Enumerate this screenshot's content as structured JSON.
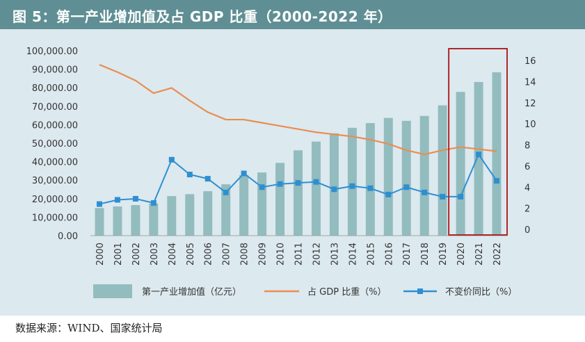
{
  "header": {
    "title": "图 5：第一产业增加值及占 GDP 比重（2000-2022 年）"
  },
  "footer": {
    "source": "数据来源：WIND、国家统计局"
  },
  "colors": {
    "header_bg": "#5f8f94",
    "panel_bg": "#dce9ef",
    "bar": "#93bcbf",
    "line_share": "#ea8d50",
    "line_growth": "#2e8fd0",
    "highlight_box": "#b0252a"
  },
  "chart_data": {
    "type": "bar",
    "categories": [
      "2000",
      "2001",
      "2002",
      "2003",
      "2004",
      "2005",
      "2006",
      "2007",
      "2008",
      "2009",
      "2010",
      "2011",
      "2012",
      "2013",
      "2014",
      "2015",
      "2016",
      "2017",
      "2018",
      "2019",
      "2020",
      "2021",
      "2022"
    ],
    "left_axis": {
      "ylim": [
        0,
        100000
      ],
      "ticks": [
        "100,000.00",
        "90,000.00",
        "80,000.00",
        "70,000.00",
        "60,000.00",
        "50,000.00",
        "40,000.00",
        "30,000.00",
        "20,000.00",
        "10,000.00",
        "0.00"
      ]
    },
    "right_axis": {
      "ylim": [
        0,
        17
      ],
      "tick_values": [
        0,
        2,
        4,
        6,
        8,
        10,
        12,
        14,
        16
      ],
      "ticks": [
        "0",
        "2",
        "4",
        "6",
        "8",
        "10",
        "12",
        "14",
        "16"
      ]
    },
    "series": [
      {
        "name": "第一产业增加值（亿元）",
        "kind": "bar",
        "axis": "left",
        "values": [
          14945,
          15781,
          16537,
          17381,
          21413,
          22420,
          24040,
          27788,
          32754,
          34161,
          39363,
          46153,
          50893,
          55322,
          58332,
          60862,
          63671,
          62100,
          64745,
          70474,
          77754,
          83086,
          88345
        ]
      },
      {
        "name": "占 GDP 比重（%）",
        "kind": "line",
        "axis": "right",
        "values": [
          15.6,
          14.9,
          14.1,
          12.9,
          13.4,
          12.2,
          11.1,
          10.4,
          10.4,
          10.1,
          9.8,
          9.5,
          9.2,
          9.0,
          8.8,
          8.5,
          8.1,
          7.5,
          7.1,
          7.5,
          7.8,
          7.6,
          7.4
        ]
      },
      {
        "name": "不变价同比（%）",
        "kind": "line-marker",
        "axis": "right",
        "values": [
          2.4,
          2.8,
          2.9,
          2.5,
          6.6,
          5.2,
          4.8,
          3.5,
          5.3,
          4.0,
          4.3,
          4.4,
          4.5,
          3.8,
          4.1,
          3.9,
          3.3,
          4.0,
          3.5,
          3.1,
          3.1,
          7.1,
          4.6
        ]
      }
    ],
    "highlight_categories": [
      "2020",
      "2021",
      "2022"
    ],
    "legend_position": "bottom",
    "grid": false
  }
}
